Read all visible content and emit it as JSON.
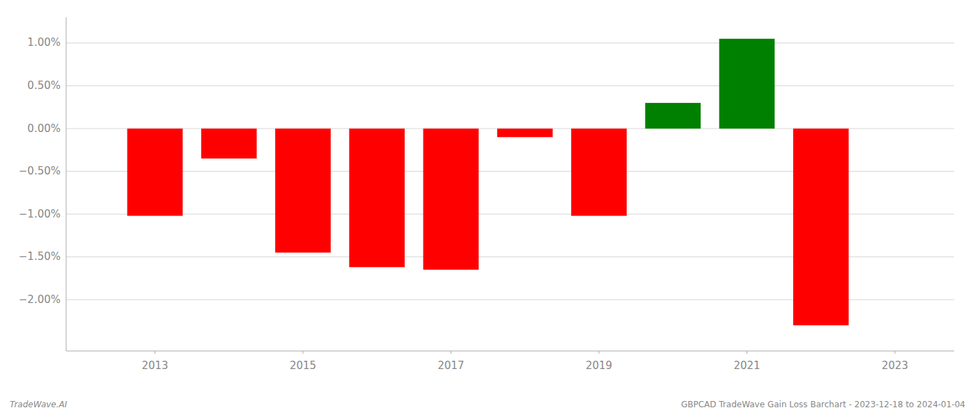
{
  "chart_data": {
    "type": "bar",
    "title": "GBPCAD TradeWave Gain Loss Barchart - 2023-12-18 to 2024-01-04",
    "annotations": [
      "TradeWave.AI"
    ],
    "x": [
      2013,
      2014,
      2015,
      2016,
      2017,
      2018,
      2019,
      2020,
      2021,
      2022
    ],
    "values": [
      -1.02,
      -0.35,
      -1.45,
      -1.62,
      -1.65,
      -0.1,
      -1.02,
      0.3,
      1.05,
      -2.3
    ],
    "colors": [
      "#ff0000",
      "#ff0000",
      "#ff0000",
      "#ff0000",
      "#ff0000",
      "#ff0000",
      "#ff0000",
      "#008000",
      "#008000",
      "#ff0000"
    ],
    "xlim": [
      2011.8,
      2023.8
    ],
    "xticks": [
      2013,
      2015,
      2017,
      2019,
      2021,
      2023
    ],
    "ylim": [
      -2.6,
      1.3
    ],
    "yticks": [
      {
        "value": -2.0,
        "label": "−2.00%"
      },
      {
        "value": -1.5,
        "label": "−1.50%"
      },
      {
        "value": -1.0,
        "label": "−1.00%"
      },
      {
        "value": -0.5,
        "label": "−0.50%"
      },
      {
        "value": 0.0,
        "label": "0.00%"
      },
      {
        "value": 0.5,
        "label": "0.50%"
      },
      {
        "value": 1.0,
        "label": "1.00%"
      }
    ],
    "grid": true
  }
}
